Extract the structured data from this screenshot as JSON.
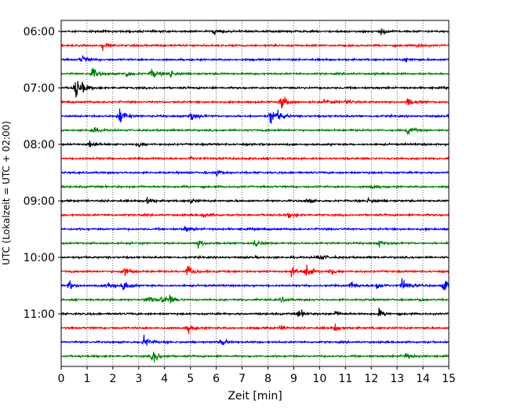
{
  "chart_data": {
    "type": "line",
    "title": "",
    "xlabel": "Zeit  [min]",
    "ylabel": "UTC (Lokalzeit = UTC + 02:00)",
    "xlim": [
      0,
      15
    ],
    "x_ticks": [
      "0",
      "1",
      "2",
      "3",
      "4",
      "5",
      "6",
      "7",
      "8",
      "9",
      "10",
      "11",
      "12",
      "13",
      "14",
      "15"
    ],
    "y_ticks": [
      "06:00",
      "07:00",
      "08:00",
      "09:00",
      "10:00",
      "11:00"
    ],
    "grid": "vertical-dotted",
    "trace_colors": [
      "#000000",
      "#ff0000",
      "#0000ff",
      "#008000"
    ],
    "row_interval_minutes": 15,
    "start_time": "06:00",
    "end_time": "11:45",
    "rows": [
      {
        "time": "06:00",
        "color": "#000000",
        "events": [
          [
            5.9,
            0.35
          ],
          [
            12.4,
            0.4
          ]
        ]
      },
      {
        "time": "06:15",
        "color": "#ff0000",
        "events": [
          [
            1.6,
            0.45
          ],
          [
            13.8,
            0.25
          ]
        ]
      },
      {
        "time": "06:30",
        "color": "#0000ff",
        "events": [
          [
            0.8,
            0.55
          ],
          [
            13.3,
            0.25
          ]
        ]
      },
      {
        "time": "06:45",
        "color": "#008000",
        "events": [
          [
            1.2,
            0.7
          ],
          [
            2.5,
            0.4
          ],
          [
            3.5,
            0.6
          ],
          [
            4.2,
            0.5
          ]
        ]
      },
      {
        "time": "07:00",
        "color": "#000000",
        "events": [
          [
            0.55,
            1.2
          ],
          [
            0.8,
            0.4
          ]
        ]
      },
      {
        "time": "07:15",
        "color": "#ff0000",
        "events": [
          [
            8.5,
            1.0
          ],
          [
            10.2,
            0.35
          ],
          [
            11.0,
            0.3
          ],
          [
            13.4,
            0.5
          ]
        ]
      },
      {
        "time": "07:30",
        "color": "#0000ff",
        "events": [
          [
            2.25,
            1.1
          ],
          [
            5.0,
            0.6
          ],
          [
            8.1,
            1.0
          ],
          [
            8.4,
            0.4
          ]
        ]
      },
      {
        "time": "07:45",
        "color": "#008000",
        "events": [
          [
            1.2,
            0.4
          ],
          [
            13.4,
            0.5
          ]
        ]
      },
      {
        "time": "08:00",
        "color": "#000000",
        "events": [
          [
            1.1,
            0.4
          ],
          [
            3.0,
            0.3
          ]
        ]
      },
      {
        "time": "08:15",
        "color": "#ff0000",
        "events": [
          [
            5.0,
            0.2
          ]
        ]
      },
      {
        "time": "08:30",
        "color": "#0000ff",
        "events": [
          [
            6.0,
            0.45
          ]
        ]
      },
      {
        "time": "08:45",
        "color": "#008000",
        "events": [
          [
            12.0,
            0.2
          ]
        ]
      },
      {
        "time": "09:00",
        "color": "#000000",
        "events": [
          [
            3.3,
            0.45
          ],
          [
            5.0,
            0.25
          ],
          [
            9.5,
            0.3
          ],
          [
            11.9,
            0.4
          ]
        ]
      },
      {
        "time": "09:15",
        "color": "#ff0000",
        "events": [
          [
            5.5,
            0.3
          ],
          [
            8.8,
            0.3
          ]
        ]
      },
      {
        "time": "09:30",
        "color": "#0000ff",
        "events": [
          [
            4.8,
            0.4
          ]
        ]
      },
      {
        "time": "09:45",
        "color": "#008000",
        "events": [
          [
            5.3,
            0.45
          ],
          [
            7.5,
            0.5
          ],
          [
            12.3,
            0.35
          ]
        ]
      },
      {
        "time": "10:00",
        "color": "#000000",
        "events": [
          [
            9.95,
            0.45
          ]
        ]
      },
      {
        "time": "10:15",
        "color": "#ff0000",
        "events": [
          [
            2.4,
            0.8
          ],
          [
            4.9,
            0.8
          ],
          [
            8.9,
            0.6
          ],
          [
            9.5,
            0.9
          ],
          [
            10.4,
            0.4
          ]
        ]
      },
      {
        "time": "10:30",
        "color": "#0000ff",
        "events": [
          [
            0.3,
            0.5
          ],
          [
            1.8,
            0.7
          ],
          [
            2.4,
            0.7
          ],
          [
            11.2,
            0.5
          ],
          [
            12.2,
            0.5
          ],
          [
            13.2,
            0.9
          ],
          [
            14.8,
            0.7
          ]
        ]
      },
      {
        "time": "10:45",
        "color": "#008000",
        "events": [
          [
            3.3,
            0.6
          ],
          [
            3.9,
            0.5
          ],
          [
            4.2,
            0.5
          ],
          [
            8.5,
            0.3
          ],
          [
            13.9,
            0.2
          ]
        ]
      },
      {
        "time": "11:00",
        "color": "#000000",
        "events": [
          [
            9.2,
            0.55
          ],
          [
            10.6,
            0.3
          ],
          [
            12.3,
            0.45
          ]
        ]
      },
      {
        "time": "11:15",
        "color": "#ff0000",
        "events": [
          [
            4.9,
            0.55
          ],
          [
            8.5,
            0.3
          ],
          [
            10.6,
            0.4
          ]
        ]
      },
      {
        "time": "11:30",
        "color": "#0000ff",
        "events": [
          [
            3.2,
            0.7
          ],
          [
            6.2,
            0.45
          ]
        ]
      },
      {
        "time": "11:45",
        "color": "#008000",
        "events": [
          [
            3.55,
            0.9
          ],
          [
            13.3,
            0.5
          ]
        ]
      }
    ]
  }
}
